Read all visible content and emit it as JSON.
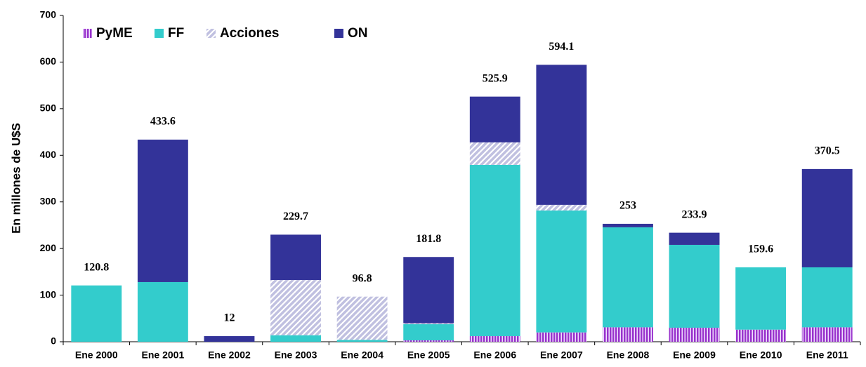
{
  "chart_data": {
    "type": "bar",
    "stacked": true,
    "y_label": "En millones de U$S",
    "categories": [
      "Ene 2000",
      "Ene 2001",
      "Ene 2002",
      "Ene 2003",
      "Ene 2004",
      "Ene 2005",
      "Ene 2006",
      "Ene 2007",
      "Ene 2008",
      "Ene 2009",
      "Ene 2010",
      "Ene 2011"
    ],
    "series": [
      {
        "name": "PyME",
        "color": "#9933cc",
        "pattern": "stripes",
        "values": [
          0,
          0,
          0,
          0,
          0,
          3,
          12,
          20,
          31,
          30,
          26,
          31
        ]
      },
      {
        "name": "FF",
        "color": "#33cccc",
        "values": [
          120.8,
          128,
          0,
          14,
          4,
          34.6,
          367.5,
          261.6,
          214.5,
          177.8,
          133.6,
          128.6
        ]
      },
      {
        "name": "Acciones",
        "color": "#c0c0e0",
        "pattern": "hatch",
        "values": [
          0,
          0,
          0,
          118.5,
          92.8,
          2,
          48.2,
          12.1,
          0,
          0,
          0,
          0
        ]
      },
      {
        "name": "ON",
        "color": "#333399",
        "values": [
          0,
          305.6,
          12,
          97.2,
          0,
          142.2,
          98.2,
          300.4,
          7.5,
          26.1,
          0,
          210.9
        ]
      }
    ],
    "total_labels": [
      "120.8",
      "433.6",
      "12",
      "229.7",
      "96.8",
      "181.8",
      "525.9",
      "594.1",
      "253",
      "233.9",
      "159.6",
      "370.5"
    ],
    "ylim": [
      0,
      700
    ],
    "yticks": [
      0,
      100,
      200,
      300,
      400,
      500,
      600,
      700
    ],
    "grid": false
  }
}
